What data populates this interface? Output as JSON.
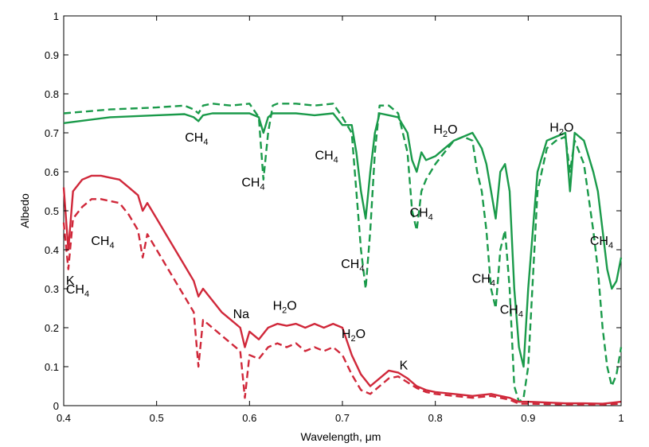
{
  "chart_data": {
    "type": "line",
    "xlabel": "Wavelength, μm",
    "ylabel": "Albedo",
    "xlim": [
      0.4,
      1.0
    ],
    "ylim": [
      0,
      1.0
    ],
    "xticks": [
      0.4,
      0.5,
      0.6,
      0.7,
      0.8,
      0.9,
      1.0
    ],
    "xtick_labels": [
      "0.4",
      "0.5",
      "0.6",
      "0.7",
      "0.8",
      "0.9",
      "1"
    ],
    "yticks": [
      0,
      0.1,
      0.2,
      0.3,
      0.4,
      0.5,
      0.6,
      0.7,
      0.8,
      0.9,
      1.0
    ],
    "ytick_labels": [
      "0",
      "0.1",
      "0.2",
      "0.3",
      "0.4",
      "0.5",
      "0.6",
      "0.7",
      "0.8",
      "0.9",
      "1"
    ],
    "grid": false,
    "series": [
      {
        "color": "#1a9a4a",
        "style": "solid",
        "x": [
          0.4,
          0.45,
          0.5,
          0.53,
          0.54,
          0.545,
          0.55,
          0.56,
          0.58,
          0.6,
          0.61,
          0.615,
          0.62,
          0.625,
          0.63,
          0.65,
          0.67,
          0.69,
          0.7,
          0.71,
          0.715,
          0.72,
          0.725,
          0.73,
          0.735,
          0.74,
          0.75,
          0.76,
          0.77,
          0.775,
          0.78,
          0.785,
          0.79,
          0.8,
          0.81,
          0.82,
          0.83,
          0.84,
          0.845,
          0.85,
          0.855,
          0.86,
          0.865,
          0.87,
          0.875,
          0.88,
          0.885,
          0.89,
          0.895,
          0.9,
          0.91,
          0.92,
          0.93,
          0.94,
          0.945,
          0.95,
          0.96,
          0.97,
          0.975,
          0.98,
          0.985,
          0.99,
          0.995,
          1.0
        ],
        "y": [
          0.725,
          0.74,
          0.745,
          0.748,
          0.74,
          0.73,
          0.745,
          0.75,
          0.75,
          0.75,
          0.74,
          0.7,
          0.74,
          0.75,
          0.75,
          0.75,
          0.745,
          0.75,
          0.72,
          0.72,
          0.65,
          0.55,
          0.48,
          0.6,
          0.7,
          0.75,
          0.745,
          0.74,
          0.7,
          0.63,
          0.6,
          0.65,
          0.63,
          0.64,
          0.66,
          0.68,
          0.69,
          0.7,
          0.68,
          0.66,
          0.62,
          0.55,
          0.48,
          0.6,
          0.62,
          0.55,
          0.3,
          0.15,
          0.1,
          0.3,
          0.6,
          0.68,
          0.69,
          0.7,
          0.55,
          0.7,
          0.68,
          0.6,
          0.55,
          0.45,
          0.35,
          0.3,
          0.32,
          0.38
        ]
      },
      {
        "color": "#1a9a4a",
        "style": "dashed",
        "x": [
          0.4,
          0.45,
          0.5,
          0.53,
          0.54,
          0.545,
          0.55,
          0.56,
          0.58,
          0.6,
          0.61,
          0.615,
          0.62,
          0.625,
          0.63,
          0.65,
          0.67,
          0.69,
          0.7,
          0.71,
          0.715,
          0.72,
          0.725,
          0.73,
          0.735,
          0.74,
          0.75,
          0.76,
          0.77,
          0.775,
          0.78,
          0.785,
          0.79,
          0.8,
          0.81,
          0.82,
          0.83,
          0.84,
          0.845,
          0.85,
          0.855,
          0.86,
          0.865,
          0.87,
          0.875,
          0.88,
          0.885,
          0.89,
          0.895,
          0.9,
          0.91,
          0.92,
          0.93,
          0.94,
          0.945,
          0.95,
          0.96,
          0.97,
          0.975,
          0.98,
          0.985,
          0.99,
          0.995,
          1.0
        ],
        "y": [
          0.75,
          0.76,
          0.765,
          0.77,
          0.76,
          0.75,
          0.77,
          0.775,
          0.77,
          0.775,
          0.74,
          0.58,
          0.7,
          0.77,
          0.775,
          0.775,
          0.77,
          0.775,
          0.74,
          0.7,
          0.55,
          0.4,
          0.3,
          0.45,
          0.65,
          0.77,
          0.77,
          0.75,
          0.65,
          0.5,
          0.45,
          0.55,
          0.58,
          0.62,
          0.65,
          0.68,
          0.69,
          0.68,
          0.6,
          0.55,
          0.45,
          0.3,
          0.25,
          0.4,
          0.45,
          0.3,
          0.05,
          0.01,
          0.02,
          0.1,
          0.55,
          0.66,
          0.68,
          0.69,
          0.6,
          0.68,
          0.62,
          0.45,
          0.35,
          0.2,
          0.1,
          0.05,
          0.08,
          0.15
        ]
      },
      {
        "color": "#d0283a",
        "style": "solid",
        "x": [
          0.4,
          0.405,
          0.41,
          0.42,
          0.43,
          0.44,
          0.45,
          0.46,
          0.47,
          0.48,
          0.485,
          0.49,
          0.5,
          0.51,
          0.52,
          0.53,
          0.54,
          0.545,
          0.55,
          0.56,
          0.57,
          0.58,
          0.59,
          0.595,
          0.6,
          0.61,
          0.62,
          0.63,
          0.64,
          0.65,
          0.66,
          0.67,
          0.68,
          0.69,
          0.7,
          0.71,
          0.72,
          0.73,
          0.74,
          0.75,
          0.76,
          0.77,
          0.78,
          0.79,
          0.8,
          0.82,
          0.84,
          0.86,
          0.87,
          0.88,
          0.89,
          0.9,
          0.92,
          0.94,
          0.96,
          0.98,
          1.0
        ],
        "y": [
          0.56,
          0.4,
          0.55,
          0.58,
          0.59,
          0.59,
          0.585,
          0.58,
          0.56,
          0.54,
          0.5,
          0.52,
          0.48,
          0.44,
          0.4,
          0.36,
          0.32,
          0.28,
          0.3,
          0.27,
          0.24,
          0.22,
          0.2,
          0.15,
          0.19,
          0.17,
          0.2,
          0.21,
          0.205,
          0.21,
          0.2,
          0.21,
          0.2,
          0.21,
          0.2,
          0.13,
          0.08,
          0.05,
          0.07,
          0.09,
          0.085,
          0.07,
          0.05,
          0.04,
          0.035,
          0.03,
          0.025,
          0.03,
          0.025,
          0.02,
          0.01,
          0.01,
          0.008,
          0.006,
          0.006,
          0.005,
          0.01
        ]
      },
      {
        "color": "#d0283a",
        "style": "dashed",
        "x": [
          0.4,
          0.405,
          0.41,
          0.42,
          0.43,
          0.44,
          0.45,
          0.46,
          0.47,
          0.48,
          0.485,
          0.49,
          0.5,
          0.51,
          0.52,
          0.53,
          0.54,
          0.545,
          0.55,
          0.56,
          0.57,
          0.58,
          0.59,
          0.595,
          0.6,
          0.61,
          0.62,
          0.63,
          0.64,
          0.65,
          0.66,
          0.67,
          0.68,
          0.69,
          0.7,
          0.71,
          0.72,
          0.73,
          0.74,
          0.75,
          0.76,
          0.77,
          0.78,
          0.79,
          0.8,
          0.82,
          0.84,
          0.86,
          0.87,
          0.88,
          0.89,
          0.9,
          0.92,
          0.94,
          0.96,
          0.98,
          1.0
        ],
        "y": [
          0.47,
          0.35,
          0.48,
          0.51,
          0.53,
          0.53,
          0.525,
          0.52,
          0.49,
          0.45,
          0.38,
          0.44,
          0.4,
          0.36,
          0.32,
          0.28,
          0.24,
          0.1,
          0.22,
          0.2,
          0.18,
          0.16,
          0.14,
          0.02,
          0.13,
          0.12,
          0.15,
          0.16,
          0.15,
          0.16,
          0.14,
          0.15,
          0.14,
          0.15,
          0.13,
          0.08,
          0.04,
          0.03,
          0.05,
          0.07,
          0.075,
          0.06,
          0.045,
          0.035,
          0.03,
          0.025,
          0.02,
          0.025,
          0.02,
          0.015,
          0.005,
          0.005,
          0.004,
          0.003,
          0.003,
          0.003,
          0.005
        ]
      }
    ],
    "annotations": [
      {
        "text": "CH",
        "sub": "4",
        "x": 0.543,
        "y": 0.678
      },
      {
        "text": "CH",
        "sub": "4",
        "x": 0.604,
        "y": 0.562
      },
      {
        "text": "CH",
        "sub": "4",
        "x": 0.683,
        "y": 0.632
      },
      {
        "text": "H",
        "sub": "2",
        "after": "O",
        "x": 0.811,
        "y": 0.698
      },
      {
        "text": "H",
        "sub": "2",
        "after": "O",
        "x": 0.936,
        "y": 0.703
      },
      {
        "text": "CH",
        "sub": "4",
        "x": 0.785,
        "y": 0.485
      },
      {
        "text": "CH",
        "sub": "4",
        "x": 0.711,
        "y": 0.353
      },
      {
        "text": "CH",
        "sub": "4",
        "x": 0.979,
        "y": 0.412
      },
      {
        "text": "CH",
        "sub": "4",
        "x": 0.852,
        "y": 0.315
      },
      {
        "text": "CH",
        "sub": "4",
        "x": 0.882,
        "y": 0.236
      },
      {
        "text": "CH",
        "sub": "4",
        "x": 0.442,
        "y": 0.412
      },
      {
        "text": "CH",
        "sub": "4",
        "x": 0.415,
        "y": 0.288
      },
      {
        "text": "K",
        "x": 0.407,
        "y": 0.31
      },
      {
        "text": "Na",
        "x": 0.591,
        "y": 0.224
      },
      {
        "text": "H",
        "sub": "2",
        "after": "O",
        "x": 0.638,
        "y": 0.246
      },
      {
        "text": "H",
        "sub": "2",
        "after": "O",
        "x": 0.712,
        "y": 0.173
      },
      {
        "text": "K",
        "x": 0.766,
        "y": 0.093
      }
    ]
  }
}
